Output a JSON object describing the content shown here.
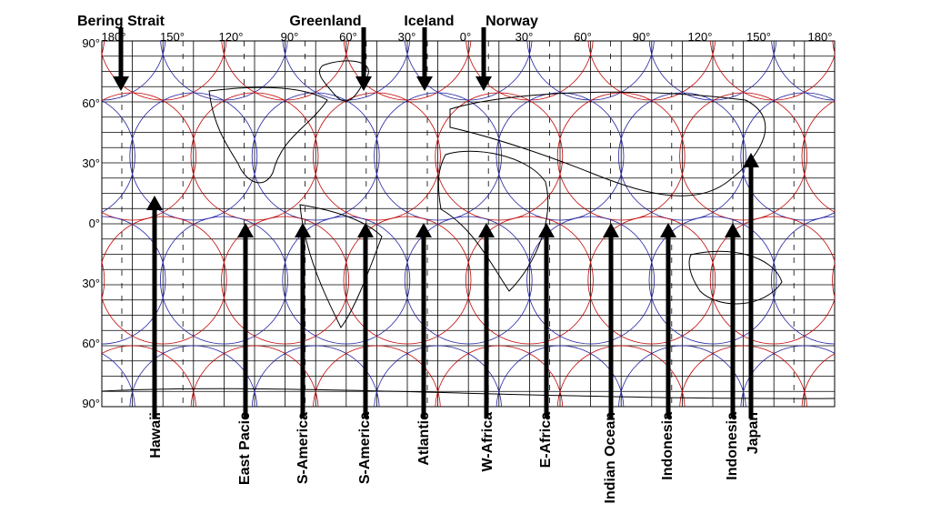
{
  "top_labels": [
    "Bering Strait",
    "Greenland",
    "Iceland",
    "Norway"
  ],
  "bottom_labels": [
    "Hawaii",
    "East Pacic",
    "S-America",
    "S-America",
    "Atlantic",
    "W-Africa",
    "E-Africa",
    "Indian Ocean",
    "Indonesia",
    "Indonesia",
    "Japan"
  ],
  "longitude_labels": [
    "180°",
    "150°",
    "120°",
    "90°",
    "60°",
    "30°",
    "0°",
    "30°",
    "60°",
    "90°",
    "120°",
    "150°",
    "180°"
  ],
  "latitude_labels": [
    "90°",
    "60°",
    "30°",
    "0°",
    "30°",
    "60°",
    "90°"
  ]
}
